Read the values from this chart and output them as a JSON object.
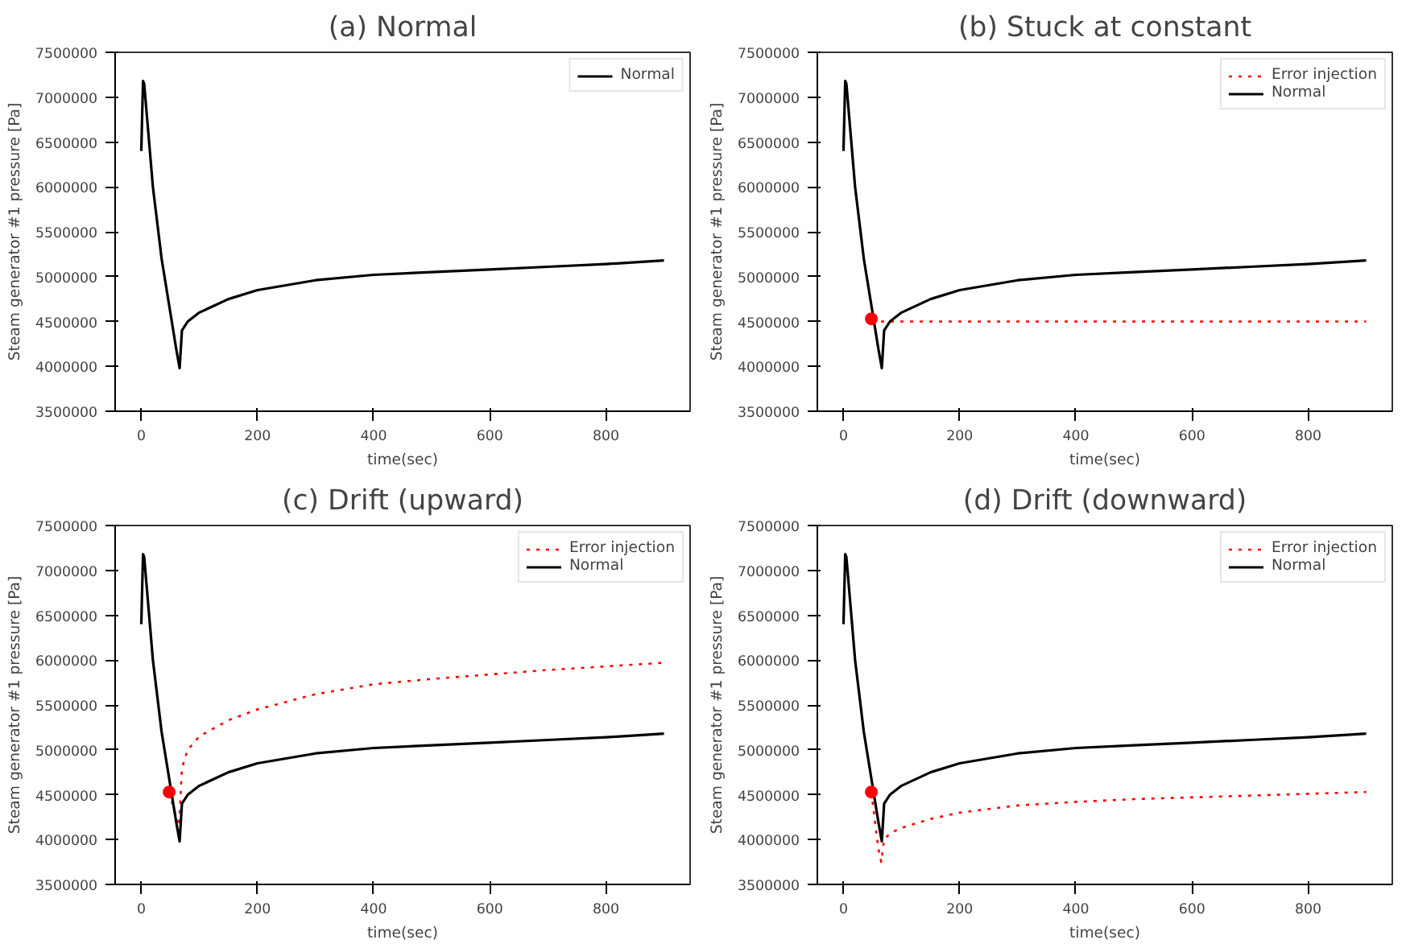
{
  "chart_data": [
    {
      "type": "line",
      "title": "(a) Normal",
      "xlabel": "time(sec)",
      "ylabel": "Steam generator #1 pressure [Pa]",
      "xlim": [
        -45,
        945
      ],
      "ylim": [
        3500000,
        7500000
      ],
      "xticks": [
        0,
        200,
        400,
        600,
        800
      ],
      "yticks": [
        3500000,
        4000000,
        4500000,
        5000000,
        5500000,
        6000000,
        6500000,
        7000000,
        7500000
      ],
      "legend": "top right",
      "grid": false,
      "series": [
        {
          "name": "Normal",
          "color": "#000000",
          "line_style": "solid",
          "x": [
            0,
            3,
            5,
            20,
            35,
            50,
            60,
            66,
            70,
            80,
            100,
            150,
            200,
            300,
            400,
            500,
            600,
            700,
            800,
            900
          ],
          "values": [
            6400000,
            7180000,
            7150000,
            6000000,
            5200000,
            4600000,
            4200000,
            3980000,
            4400000,
            4500000,
            4600000,
            4750000,
            4850000,
            4960000,
            5020000,
            5050000,
            5080000,
            5110000,
            5140000,
            5180000
          ]
        }
      ]
    },
    {
      "type": "line",
      "title": "(b) Stuck at constant",
      "xlabel": "time(sec)",
      "ylabel": "Steam generator #1 pressure [Pa]",
      "xlim": [
        -45,
        945
      ],
      "ylim": [
        3500000,
        7500000
      ],
      "xticks": [
        0,
        200,
        400,
        600,
        800
      ],
      "yticks": [
        3500000,
        4000000,
        4500000,
        5000000,
        5500000,
        6000000,
        6500000,
        7000000,
        7500000
      ],
      "legend": "top right",
      "grid": false,
      "series": [
        {
          "name": "Error injection",
          "color": "#ff0000",
          "line_style": "dotted",
          "x": [
            48,
            900
          ],
          "values": [
            4500000,
            4500000
          ]
        },
        {
          "name": "Normal",
          "color": "#000000",
          "line_style": "solid",
          "x": [
            0,
            3,
            5,
            20,
            35,
            50,
            60,
            66,
            70,
            80,
            100,
            150,
            200,
            300,
            400,
            500,
            600,
            700,
            800,
            900
          ],
          "values": [
            6400000,
            7180000,
            7150000,
            6000000,
            5200000,
            4600000,
            4200000,
            3980000,
            4400000,
            4500000,
            4600000,
            4750000,
            4850000,
            4960000,
            5020000,
            5050000,
            5080000,
            5110000,
            5140000,
            5180000
          ]
        },
        {
          "type": "scatter",
          "marker": "circle",
          "color": "#ff0000",
          "x": [
            48
          ],
          "values": [
            4530000
          ]
        }
      ]
    },
    {
      "type": "line",
      "title": "(c) Drift (upward)",
      "xlabel": "time(sec)",
      "ylabel": "Steam generator #1 pressure [Pa]",
      "xlim": [
        -45,
        945
      ],
      "ylim": [
        3500000,
        7500000
      ],
      "xticks": [
        0,
        200,
        400,
        600,
        800
      ],
      "yticks": [
        3500000,
        4000000,
        4500000,
        5000000,
        5500000,
        6000000,
        6500000,
        7000000,
        7500000
      ],
      "legend": "top right",
      "grid": false,
      "series": [
        {
          "name": "Error injection",
          "color": "#ff0000",
          "line_style": "dotted",
          "x": [
            48,
            60,
            65,
            70,
            80,
            100,
            150,
            200,
            300,
            400,
            500,
            600,
            700,
            800,
            900
          ],
          "values": [
            4530000,
            4250000,
            4150000,
            4800000,
            5000000,
            5150000,
            5330000,
            5450000,
            5620000,
            5730000,
            5790000,
            5840000,
            5890000,
            5930000,
            5970000
          ]
        },
        {
          "name": "Normal",
          "color": "#000000",
          "line_style": "solid",
          "x": [
            0,
            3,
            5,
            20,
            35,
            50,
            60,
            66,
            70,
            80,
            100,
            150,
            200,
            300,
            400,
            500,
            600,
            700,
            800,
            900
          ],
          "values": [
            6400000,
            7180000,
            7150000,
            6000000,
            5200000,
            4600000,
            4200000,
            3980000,
            4400000,
            4500000,
            4600000,
            4750000,
            4850000,
            4960000,
            5020000,
            5050000,
            5080000,
            5110000,
            5140000,
            5180000
          ]
        },
        {
          "type": "scatter",
          "marker": "circle",
          "color": "#ff0000",
          "x": [
            48
          ],
          "values": [
            4530000
          ]
        }
      ]
    },
    {
      "type": "line",
      "title": "(d) Drift (downward)",
      "xlabel": "time(sec)",
      "ylabel": "Steam generator #1 pressure [Pa]",
      "xlim": [
        -45,
        945
      ],
      "ylim": [
        3500000,
        7500000
      ],
      "xticks": [
        0,
        200,
        400,
        600,
        800
      ],
      "yticks": [
        3500000,
        4000000,
        4500000,
        5000000,
        5500000,
        6000000,
        6500000,
        7000000,
        7500000
      ],
      "legend": "top right",
      "grid": false,
      "series": [
        {
          "name": "Error injection",
          "color": "#ff0000",
          "line_style": "dotted",
          "x": [
            48,
            60,
            65,
            70,
            80,
            100,
            150,
            200,
            300,
            400,
            500,
            600,
            700,
            800,
            900
          ],
          "values": [
            4530000,
            3900000,
            3750000,
            4000000,
            4070000,
            4130000,
            4230000,
            4300000,
            4380000,
            4420000,
            4450000,
            4470000,
            4490000,
            4510000,
            4530000
          ]
        },
        {
          "name": "Normal",
          "color": "#000000",
          "line_style": "solid",
          "x": [
            0,
            3,
            5,
            20,
            35,
            50,
            60,
            66,
            70,
            80,
            100,
            150,
            200,
            300,
            400,
            500,
            600,
            700,
            800,
            900
          ],
          "values": [
            6400000,
            7180000,
            7150000,
            6000000,
            5200000,
            4600000,
            4200000,
            3980000,
            4400000,
            4500000,
            4600000,
            4750000,
            4850000,
            4960000,
            5020000,
            5050000,
            5080000,
            5110000,
            5140000,
            5180000
          ]
        },
        {
          "type": "scatter",
          "marker": "circle",
          "color": "#ff0000",
          "x": [
            48
          ],
          "values": [
            4530000
          ]
        }
      ]
    }
  ]
}
